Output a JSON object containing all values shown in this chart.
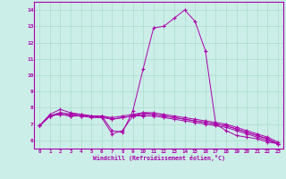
{
  "xlabel": "Windchill (Refroidissement éolien,°C)",
  "background_color": "#cceee8",
  "grid_color": "#aaddcc",
  "line_color": "#aa00aa",
  "xlim": [
    -0.5,
    23.5
  ],
  "ylim": [
    5.5,
    14.5
  ],
  "yticks": [
    6,
    7,
    8,
    9,
    10,
    11,
    12,
    13,
    14
  ],
  "xticks": [
    0,
    1,
    2,
    3,
    4,
    5,
    6,
    7,
    8,
    9,
    10,
    11,
    12,
    13,
    14,
    15,
    16,
    17,
    18,
    19,
    20,
    21,
    22,
    23
  ],
  "curves": [
    {
      "x": [
        0,
        1,
        2,
        3,
        4,
        5,
        6,
        7,
        8,
        9,
        10,
        11,
        12,
        13,
        14,
        15,
        16,
        17,
        18,
        19,
        20,
        21,
        22,
        23
      ],
      "y": [
        6.9,
        7.6,
        7.9,
        7.7,
        7.6,
        7.5,
        7.5,
        6.6,
        6.5,
        7.8,
        10.4,
        12.9,
        13.0,
        13.5,
        14.0,
        13.3,
        11.5,
        7.0,
        6.6,
        6.3,
        6.2,
        6.1,
        5.9,
        5.8
      ]
    },
    {
      "x": [
        0,
        1,
        2,
        3,
        4,
        5,
        6,
        7,
        8,
        9,
        10,
        11,
        12,
        13,
        14,
        15,
        16,
        17,
        18,
        19,
        20,
        21,
        22,
        23
      ],
      "y": [
        6.9,
        7.5,
        7.7,
        7.6,
        7.6,
        7.5,
        7.5,
        7.4,
        7.5,
        7.6,
        7.7,
        7.7,
        7.6,
        7.5,
        7.4,
        7.3,
        7.2,
        7.1,
        7.0,
        6.8,
        6.6,
        6.4,
        6.2,
        5.9
      ]
    },
    {
      "x": [
        0,
        1,
        2,
        3,
        4,
        5,
        6,
        7,
        8,
        9,
        10,
        11,
        12,
        13,
        14,
        15,
        16,
        17,
        18,
        19,
        20,
        21,
        22,
        23
      ],
      "y": [
        6.9,
        7.5,
        7.6,
        7.5,
        7.5,
        7.5,
        7.5,
        7.3,
        7.4,
        7.5,
        7.6,
        7.6,
        7.5,
        7.4,
        7.3,
        7.2,
        7.1,
        7.0,
        6.9,
        6.7,
        6.5,
        6.3,
        6.1,
        5.8
      ]
    },
    {
      "x": [
        0,
        1,
        2,
        3,
        4,
        5,
        6,
        7,
        8,
        9,
        10,
        11,
        12,
        13,
        14,
        15,
        16,
        17,
        18,
        19,
        20,
        21,
        22,
        23
      ],
      "y": [
        6.9,
        7.5,
        7.6,
        7.5,
        7.5,
        7.4,
        7.4,
        7.3,
        7.4,
        7.5,
        7.5,
        7.5,
        7.4,
        7.3,
        7.2,
        7.1,
        7.0,
        6.9,
        6.8,
        6.6,
        6.4,
        6.2,
        6.0,
        5.8
      ]
    },
    {
      "x": [
        0,
        1,
        2,
        3,
        4,
        5,
        6,
        7,
        8,
        9,
        10,
        11,
        12,
        13,
        14,
        15,
        16,
        17,
        18,
        19,
        20,
        21,
        22,
        23
      ],
      "y": [
        6.9,
        7.5,
        7.7,
        7.6,
        7.5,
        7.5,
        7.4,
        6.4,
        6.6,
        7.5,
        7.7,
        7.6,
        7.5,
        7.4,
        7.3,
        7.2,
        7.1,
        7.0,
        6.9,
        6.7,
        6.5,
        6.3,
        6.1,
        5.8
      ]
    }
  ]
}
